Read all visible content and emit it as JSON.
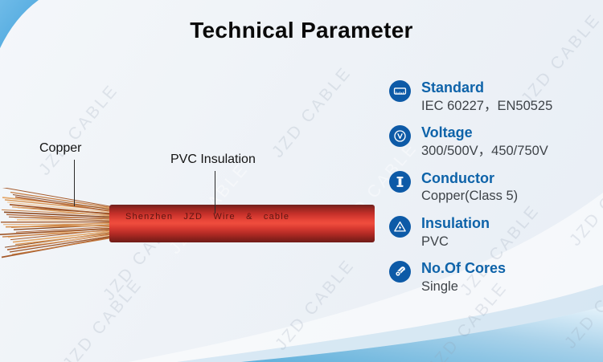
{
  "title": "Technical Parameter",
  "watermark": {
    "text": "JZD CABLE"
  },
  "cable": {
    "label_copper": "Copper",
    "label_insulation": "PVC Insulation",
    "print_text": "Shenzhen JZD Wire & cable",
    "insulation_color": "#e0332c",
    "copper_strand_colors": [
      "#a55a2b",
      "#c87f44",
      "#e3a86b",
      "#8c4a22",
      "#d9934f",
      "#b3683a",
      "#f0c08a",
      "#9e5527"
    ]
  },
  "specs": {
    "icon_bg": "#0d5aa7",
    "label_color": "#0e63a9",
    "value_color": "#3e4348",
    "items": [
      {
        "icon": "ruler-icon",
        "label": "Standard",
        "value": "IEC 60227，EN50525"
      },
      {
        "icon": "voltage-icon",
        "label": "Voltage",
        "value": "300/500V，450/750V"
      },
      {
        "icon": "conductor-spool-icon",
        "label": "Conductor",
        "value": "Copper(Class 5)"
      },
      {
        "icon": "insulation-triangle-icon",
        "label": "Insulation",
        "value": "PVC"
      },
      {
        "icon": "cores-cable-icon",
        "label": "No.Of Cores",
        "value": "Single"
      }
    ]
  }
}
